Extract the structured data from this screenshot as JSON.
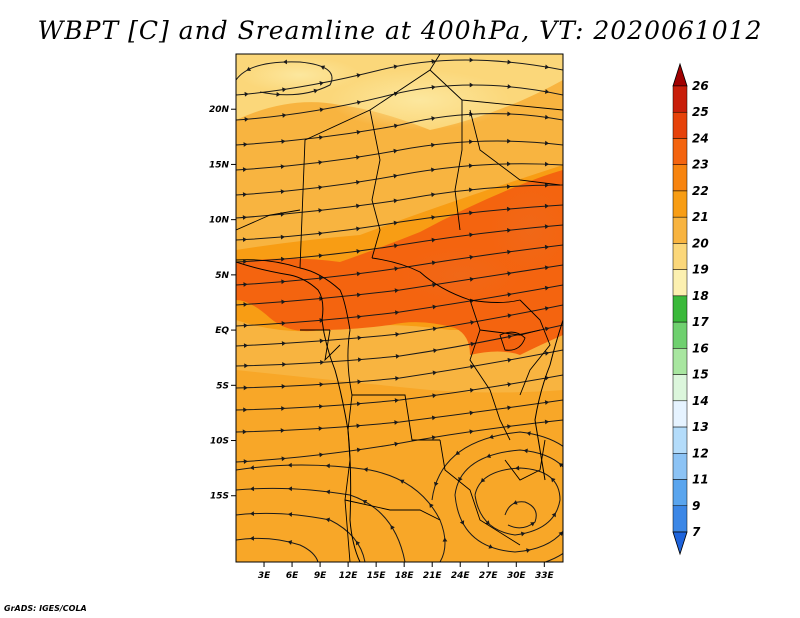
{
  "title": "WBPT [C] and Sreamline at 400hPa, VT: 2020061012",
  "credit": "GrADS: IGES/COLA",
  "map": {
    "field": "Wet-bulb potential temperature (C) with streamlines at 400hPa",
    "lon_range": [
      0,
      35
    ],
    "lat_range": [
      -21,
      25
    ],
    "lat_ticks": [
      {
        "value": 20,
        "label": "20N"
      },
      {
        "value": 15,
        "label": "15N"
      },
      {
        "value": 10,
        "label": "10N"
      },
      {
        "value": 5,
        "label": "5N"
      },
      {
        "value": 0,
        "label": "EQ"
      },
      {
        "value": -5,
        "label": "5S"
      },
      {
        "value": -10,
        "label": "10S"
      },
      {
        "value": -15,
        "label": "15S"
      }
    ],
    "lon_ticks": [
      {
        "value": 3,
        "label": "3E"
      },
      {
        "value": 6,
        "label": "6E"
      },
      {
        "value": 9,
        "label": "9E"
      },
      {
        "value": 12,
        "label": "12E"
      },
      {
        "value": 15,
        "label": "15E"
      },
      {
        "value": 18,
        "label": "18E"
      },
      {
        "value": 21,
        "label": "21E"
      },
      {
        "value": 24,
        "label": "24E"
      },
      {
        "value": 27,
        "label": "27E"
      },
      {
        "value": 30,
        "label": "30E"
      },
      {
        "value": 33,
        "label": "33E"
      }
    ]
  },
  "colorbar": {
    "labels": [
      "26",
      "25",
      "24",
      "23",
      "22",
      "21",
      "20",
      "19",
      "18",
      "17",
      "16",
      "15",
      "14",
      "13",
      "12",
      "11",
      "9",
      "7"
    ],
    "colors": [
      "#a00000",
      "#c81e0a",
      "#e6420a",
      "#f4640f",
      "#f7840f",
      "#f89d14",
      "#f8b440",
      "#fbd77a",
      "#fcf0b0",
      "#3ab93a",
      "#6fd06f",
      "#a8e6a0",
      "#dcf6dc",
      "#e6f3ff",
      "#b4dcfa",
      "#8cc3f5",
      "#5aa5ee",
      "#3c87e6",
      "#1e64dc"
    ]
  }
}
